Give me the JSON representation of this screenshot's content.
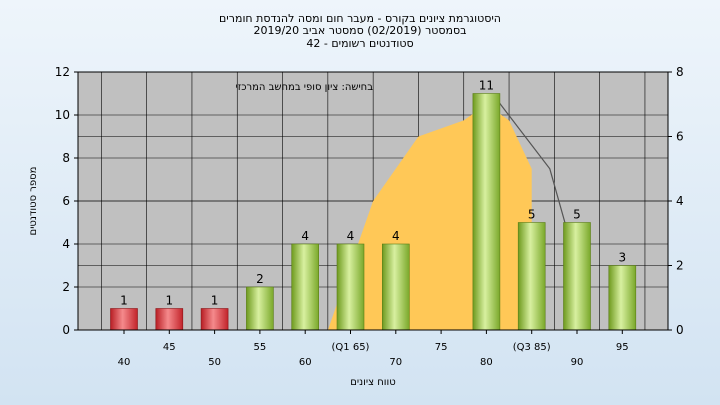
{
  "header": {
    "line1": "היסטוגרמת ציונים בקורס - מעבר חום ומסה להנדסת חומרים",
    "line2": "בסמסטר  (02/2019)  סמסטר אביב 2019/20",
    "line3": "סטודנטים רשומים - 42"
  },
  "chart_data": {
    "type": "bar",
    "title": "היסטוגרמת ציונים בקורס - מעבר חום ומסה להנדסת חומרים",
    "xlabel": "טווח ציונים",
    "ylabel": "מספר סטודנטים",
    "annotation": "בחישה: ציון סופי במחשב המרכזי",
    "categories": [
      "40",
      "45",
      "50",
      "55",
      "60",
      "(Q1 65)",
      "70",
      "75",
      "80",
      "(Q3 85)",
      "90",
      "95"
    ],
    "values": [
      1,
      1,
      1,
      2,
      4,
      4,
      4,
      0,
      11,
      5,
      5,
      3
    ],
    "value_labels": [
      "1",
      "1",
      "1",
      "2",
      "4",
      "4",
      "4",
      "",
      "11",
      "5",
      "5",
      "3"
    ],
    "bar_colors": [
      "#d9262c",
      "#d9262c",
      "#d9262c",
      "#8dc63f",
      "#8dc63f",
      "#8dc63f",
      "#8dc63f",
      "#8dc63f",
      "#8dc63f",
      "#8dc63f",
      "#8dc63f",
      "#8dc63f"
    ],
    "ylim": [
      0,
      12
    ],
    "yticks": [
      0,
      2,
      4,
      6,
      8,
      10,
      12
    ],
    "y2lim": [
      0,
      8
    ],
    "y2ticks": [
      0,
      2,
      4,
      6,
      8
    ],
    "distribution_area": {
      "color": "#ffc857",
      "points": [
        [
          4.5,
          0
        ],
        [
          5.5,
          4
        ],
        [
          6.5,
          6
        ],
        [
          7.5,
          6.5
        ],
        [
          8,
          7
        ],
        [
          8.5,
          6.5
        ],
        [
          9,
          5
        ],
        [
          9,
          0
        ]
      ]
    },
    "distribution_line": {
      "color": "#555555",
      "points": [
        [
          8.2,
          7.2
        ],
        [
          9.4,
          5
        ],
        [
          10,
          2
        ]
      ]
    },
    "grid": true
  }
}
